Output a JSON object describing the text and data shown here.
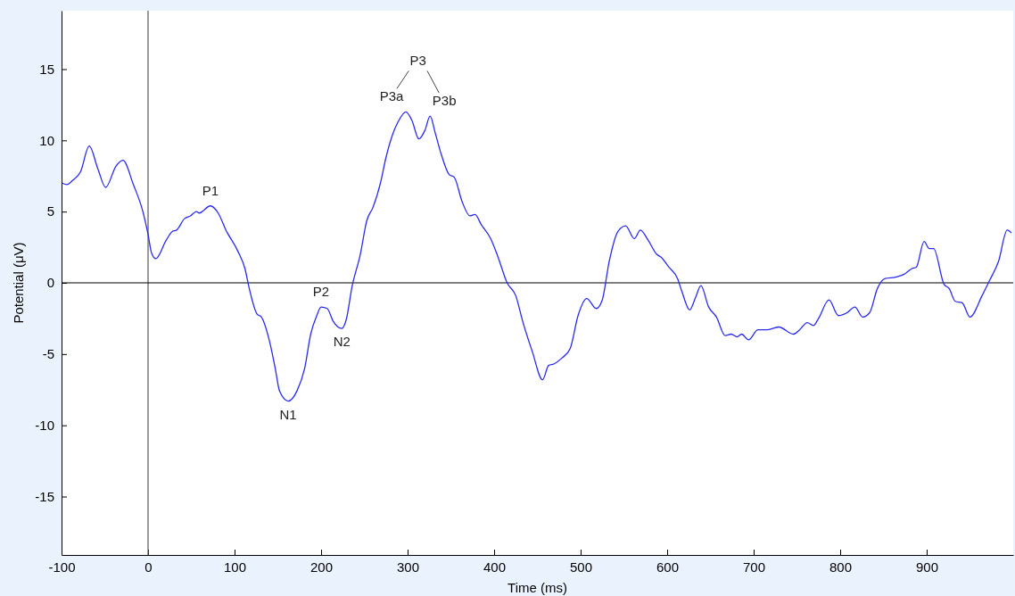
{
  "chart_data": {
    "type": "line",
    "xlabel": "Time (ms)",
    "ylabel": "Potential (μV)",
    "xlim": [
      -100,
      1000
    ],
    "ylim": [
      -19.1,
      19.1
    ],
    "xticks": [
      -100,
      0,
      100,
      200,
      300,
      400,
      500,
      600,
      700,
      800,
      900
    ],
    "yticks": [
      -15,
      -10,
      -5,
      0,
      5,
      10,
      15
    ],
    "grid": false,
    "marker": "none",
    "line_style": "solid",
    "ref_lines": [
      {
        "axis": "x",
        "value": 0,
        "color": "#555555"
      },
      {
        "axis": "y",
        "value": 0,
        "color": "#000000"
      }
    ],
    "annotations": [
      {
        "text": "P1",
        "x": 72,
        "y": 5.4
      },
      {
        "text": "N1",
        "x": 162,
        "y": -8.3
      },
      {
        "text": "P2",
        "x": 200,
        "y": -1.7
      },
      {
        "text": "N2",
        "x": 224,
        "y": -3.2
      },
      {
        "text": "P3a",
        "x": 298,
        "y": 12.0
      },
      {
        "text": "P3b",
        "x": 326,
        "y": 11.7
      },
      "P3"
    ],
    "series": [
      {
        "color": "#2b2bf0",
        "x": [
          -99,
          -94,
          -87,
          -78,
          -68,
          -58,
          -49,
          -37,
          -29,
          -17,
          -6,
          0,
          4,
          9,
          21,
          28,
          33,
          42,
          49,
          56,
          59,
          72,
          81,
          90,
          104,
          112,
          117,
          126,
          131,
          140,
          147,
          152,
          162,
          172,
          181,
          188,
          195,
          200,
          207,
          214,
          224,
          229,
          236,
          245,
          253,
          260,
          269,
          275,
          282,
          289,
          298,
          305,
          313,
          320,
          326,
          332,
          339,
          348,
          354,
          363,
          372,
          378,
          385,
          396,
          404,
          415,
          425,
          433,
          444,
          456,
          463,
          469,
          478,
          488,
          497,
          507,
          518,
          525,
          533,
          543,
          552,
          562,
          569,
          578,
          588,
          593,
          602,
          612,
          617,
          626,
          633,
          639,
          648,
          657,
          667,
          674,
          681,
          686,
          694,
          705,
          715,
          729,
          746,
          753,
          762,
          769,
          775,
          787,
          798,
          808,
          817,
          826,
          834,
          843,
          852,
          864,
          874,
          883,
          888,
          897,
          903,
          908,
          920,
          926,
          933,
          941,
          950,
          964,
          973,
          983,
          993,
          998
        ],
        "values": [
          7.0,
          6.9,
          7.2,
          7.8,
          9.6,
          8.0,
          6.7,
          8.2,
          8.6,
          6.9,
          5.0,
          3.4,
          2.1,
          1.7,
          3.0,
          3.6,
          3.7,
          4.5,
          4.7,
          5.0,
          4.9,
          5.4,
          4.9,
          3.7,
          2.2,
          1.0,
          -0.4,
          -2.2,
          -2.4,
          -4.0,
          -6.0,
          -7.6,
          -8.3,
          -7.6,
          -6.0,
          -3.6,
          -2.3,
          -1.7,
          -1.8,
          -2.7,
          -3.2,
          -2.6,
          -0.2,
          1.9,
          4.4,
          5.3,
          7.1,
          8.8,
          10.3,
          11.3,
          12.0,
          11.4,
          10.1,
          10.7,
          11.7,
          10.5,
          9.0,
          7.6,
          7.4,
          5.7,
          4.7,
          4.8,
          4.1,
          3.1,
          1.9,
          0.0,
          -0.9,
          -2.7,
          -4.8,
          -6.8,
          -5.8,
          -5.7,
          -5.3,
          -4.6,
          -2.3,
          -1.1,
          -1.8,
          -1.2,
          1.5,
          3.6,
          4.0,
          3.1,
          3.7,
          3.0,
          2.0,
          1.8,
          1.1,
          0.3,
          -0.6,
          -1.9,
          -1.0,
          -0.2,
          -1.7,
          -2.4,
          -3.7,
          -3.6,
          -3.8,
          -3.6,
          -4.0,
          -3.3,
          -3.3,
          -3.1,
          -3.6,
          -3.3,
          -2.8,
          -3.0,
          -2.5,
          -1.2,
          -2.3,
          -2.1,
          -1.7,
          -2.4,
          -2.1,
          -0.4,
          0.3,
          0.4,
          0.6,
          1.0,
          1.1,
          2.9,
          2.4,
          2.4,
          -0.1,
          -0.4,
          -1.3,
          -1.4,
          -2.4,
          -0.9,
          0.2,
          1.5,
          3.7,
          3.5
        ]
      }
    ]
  }
}
